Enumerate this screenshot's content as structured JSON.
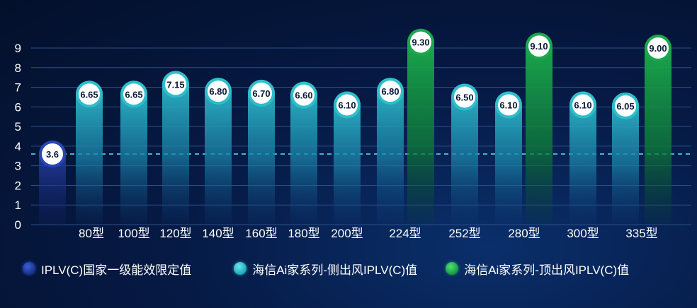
{
  "colors": {
    "national": "#2a46b8",
    "side_top": "#2fc0cc",
    "side_bottom": "rgba(20,110,150,0.05)",
    "top_top": "#19a84a",
    "top_bottom": "rgba(10,90,40,0.05)",
    "threshold_line": "#3fb8c8",
    "grid": "#2a4f86",
    "text": "#ffffff"
  },
  "chart_data": {
    "type": "bar",
    "yticks": [
      "0",
      "1",
      "2",
      "3",
      "4",
      "5",
      "6",
      "7",
      "8",
      "9"
    ],
    "ylim": [
      0,
      9
    ],
    "threshold": 3.6,
    "bars": [
      {
        "category": "",
        "value": 3.6,
        "label": "3.6",
        "series": "national"
      },
      {
        "category": "80型",
        "value": 6.65,
        "label": "6.65",
        "series": "side"
      },
      {
        "category": "100型",
        "value": 6.65,
        "label": "6.65",
        "series": "side"
      },
      {
        "category": "120型",
        "value": 7.15,
        "label": "7.15",
        "series": "side"
      },
      {
        "category": "140型",
        "value": 6.8,
        "label": "6.80",
        "series": "side"
      },
      {
        "category": "160型",
        "value": 6.7,
        "label": "6.70",
        "series": "side"
      },
      {
        "category": "180型",
        "value": 6.6,
        "label": "6.60",
        "series": "side"
      },
      {
        "category": "200型",
        "value": 6.1,
        "label": "6.10",
        "series": "side"
      },
      {
        "category": "224型",
        "value": 6.8,
        "label": "6.80",
        "series": "side"
      },
      {
        "category": "224型",
        "value": 9.3,
        "label": "9.30",
        "series": "top"
      },
      {
        "category": "252型",
        "value": 6.5,
        "label": "6.50",
        "series": "side"
      },
      {
        "category": "280型",
        "value": 6.1,
        "label": "6.10",
        "series": "side"
      },
      {
        "category": "280型",
        "value": 9.1,
        "label": "9.10",
        "series": "top"
      },
      {
        "category": "300型",
        "value": 6.1,
        "label": "6.10",
        "series": "side"
      },
      {
        "category": "335型",
        "value": 6.05,
        "label": "6.05",
        "series": "side"
      },
      {
        "category": "335型",
        "value": 9.0,
        "label": "9.00",
        "series": "top"
      }
    ],
    "category_labels": [
      "80型",
      "100型",
      "120型",
      "140型",
      "160型",
      "180型",
      "200型",
      "224型",
      "252型",
      "280型",
      "300型",
      "335型"
    ]
  },
  "legend": {
    "national": "IPLV(C)国家一级能效限定值",
    "side": "海信Ai家系列-侧出风IPLV(C)值",
    "top": "海信Ai家系列-顶出风IPLV(C)值"
  }
}
